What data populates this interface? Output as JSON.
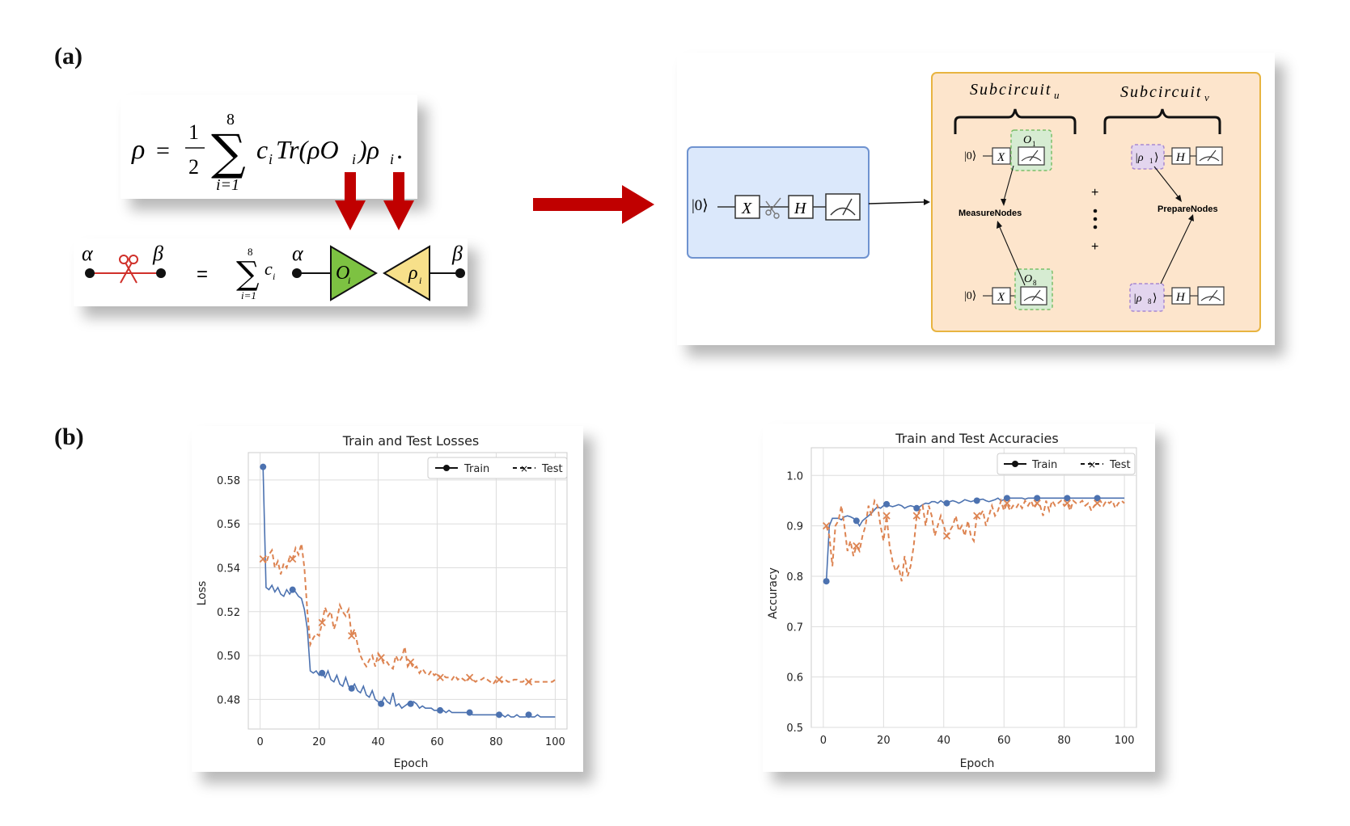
{
  "labels": {
    "a": "(a)",
    "b": "(b)"
  },
  "formula_top": {
    "lhs": "ρ",
    "eq": "=",
    "frac_num": "1",
    "frac_den": "2",
    "sum_upper": "8",
    "sum_lower": "i=1",
    "body": "c",
    "body_sub": "i",
    "trace": "Tr(ρO",
    "trace_sub": "i",
    "trace_close": ")ρ",
    "rho_sub": "i",
    "period": "."
  },
  "formula_cut": {
    "alpha": "α",
    "beta": "β",
    "eq": "=",
    "sum_upper": "8",
    "sum_lower": "i=1",
    "coef": "c",
    "coef_sub": "i",
    "o_label": "O",
    "o_sub": "i",
    "rho_label": "ρ",
    "rho_sub": "i",
    "colors": {
      "green": "#7dc242",
      "yellow": "#f7e08a",
      "wire": "#111111",
      "cut": "#d0302a"
    }
  },
  "circuit": {
    "ket0": "|0⟩",
    "x": "X",
    "h": "H",
    "subcircuit_u": "Subcircuit",
    "subcircuit_u_sub": "u",
    "subcircuit_v": "Subcircuit",
    "subcircuit_v_sub": "v",
    "o1": "O",
    "o1_sub": "1",
    "o8": "O",
    "o8_sub": "8",
    "rho1": "|ρ",
    "rho1_sub": "1",
    "rho1_close": "⟩",
    "rho8": "|ρ",
    "rho8_sub": "8",
    "rho8_close": "⟩",
    "measure_nodes": "MeasureNodes",
    "prepare_nodes": "PrepareNodes",
    "plus": "+",
    "colors": {
      "blue_bg": "#dbe8fb",
      "blue_border": "#6f93d0",
      "orange_bg": "#fde5cc",
      "orange_border": "#e8b440",
      "green_box": "#d6ecd2",
      "purple_box": "#e3d5ee",
      "arrow_red": "#c00000"
    }
  },
  "loss_chart": {
    "title": "Train and Test Losses",
    "xlabel": "Epoch",
    "ylabel": "Loss",
    "legend_train": "Train",
    "legend_test": "Test",
    "xticks": [
      "0",
      "20",
      "40",
      "60",
      "80",
      "100"
    ],
    "yticks": [
      "0.48",
      "0.50",
      "0.52",
      "0.54",
      "0.56",
      "0.58"
    ]
  },
  "acc_chart": {
    "title": "Train and Test Accuracies",
    "xlabel": "Epoch",
    "ylabel": "Accuracy",
    "legend_train": "Train",
    "legend_test": "Test",
    "xticks": [
      "0",
      "20",
      "40",
      "60",
      "80",
      "100"
    ],
    "yticks": [
      "0.5",
      "0.6",
      "0.7",
      "0.8",
      "0.9",
      "1.0"
    ]
  },
  "chart_data": [
    {
      "type": "line",
      "title": "Train and Test Losses",
      "xlabel": "Epoch",
      "ylabel": "Loss",
      "xlim": [
        -4,
        104
      ],
      "ylim": [
        0.4665,
        0.5925
      ],
      "grid": true,
      "legend": "top-right",
      "colors": {
        "Train": "#4c72b0",
        "Test": "#dd8452"
      },
      "series": [
        {
          "name": "Train",
          "x": [
            1,
            2,
            3,
            4,
            5,
            6,
            7,
            8,
            9,
            10,
            11,
            12,
            13,
            14,
            15,
            16,
            17,
            18,
            19,
            20,
            21,
            22,
            23,
            24,
            25,
            26,
            27,
            28,
            29,
            30,
            31,
            32,
            33,
            34,
            35,
            36,
            37,
            38,
            39,
            40,
            41,
            42,
            43,
            44,
            45,
            46,
            47,
            48,
            49,
            50,
            51,
            52,
            53,
            54,
            55,
            56,
            57,
            58,
            59,
            60,
            61,
            62,
            63,
            64,
            65,
            66,
            67,
            68,
            69,
            70,
            71,
            72,
            73,
            74,
            75,
            76,
            77,
            78,
            79,
            80,
            81,
            82,
            83,
            84,
            85,
            86,
            87,
            88,
            89,
            90,
            91,
            92,
            93,
            94,
            95,
            96,
            97,
            98,
            99,
            100
          ],
          "values": [
            0.586,
            0.531,
            0.53,
            0.532,
            0.529,
            0.531,
            0.528,
            0.527,
            0.53,
            0.528,
            0.53,
            0.529,
            0.527,
            0.526,
            0.521,
            0.512,
            0.493,
            0.492,
            0.493,
            0.491,
            0.492,
            0.49,
            0.493,
            0.489,
            0.488,
            0.491,
            0.487,
            0.486,
            0.49,
            0.486,
            0.485,
            0.487,
            0.484,
            0.483,
            0.486,
            0.482,
            0.481,
            0.484,
            0.48,
            0.479,
            0.478,
            0.481,
            0.479,
            0.478,
            0.483,
            0.477,
            0.478,
            0.476,
            0.477,
            0.478,
            0.478,
            0.479,
            0.478,
            0.476,
            0.477,
            0.476,
            0.476,
            0.476,
            0.475,
            0.475,
            0.475,
            0.475,
            0.474,
            0.475,
            0.474,
            0.474,
            0.474,
            0.474,
            0.474,
            0.474,
            0.474,
            0.473,
            0.473,
            0.473,
            0.473,
            0.473,
            0.473,
            0.473,
            0.473,
            0.473,
            0.473,
            0.473,
            0.472,
            0.473,
            0.472,
            0.472,
            0.473,
            0.472,
            0.472,
            0.472,
            0.473,
            0.472,
            0.472,
            0.473,
            0.472,
            0.472,
            0.472,
            0.472,
            0.472,
            0.472
          ],
          "markers_every": 10
        },
        {
          "name": "Test",
          "x": [
            1,
            2,
            3,
            4,
            5,
            6,
            7,
            8,
            9,
            10,
            11,
            12,
            13,
            14,
            15,
            16,
            17,
            18,
            19,
            20,
            21,
            22,
            23,
            24,
            25,
            26,
            27,
            28,
            29,
            30,
            31,
            32,
            33,
            34,
            35,
            36,
            37,
            38,
            39,
            40,
            41,
            42,
            43,
            44,
            45,
            46,
            47,
            48,
            49,
            50,
            51,
            52,
            53,
            54,
            55,
            56,
            57,
            58,
            59,
            60,
            61,
            62,
            63,
            64,
            65,
            66,
            67,
            68,
            69,
            70,
            71,
            72,
            73,
            74,
            75,
            76,
            77,
            78,
            79,
            80,
            81,
            82,
            83,
            84,
            85,
            86,
            87,
            88,
            89,
            90,
            91,
            92,
            93,
            94,
            95,
            96,
            97,
            98,
            99,
            100
          ],
          "values": [
            0.544,
            0.542,
            0.546,
            0.548,
            0.54,
            0.543,
            0.537,
            0.542,
            0.54,
            0.545,
            0.544,
            0.549,
            0.546,
            0.551,
            0.54,
            0.52,
            0.505,
            0.508,
            0.51,
            0.509,
            0.515,
            0.522,
            0.518,
            0.52,
            0.512,
            0.516,
            0.523,
            0.52,
            0.518,
            0.521,
            0.509,
            0.512,
            0.505,
            0.5,
            0.497,
            0.495,
            0.498,
            0.5,
            0.495,
            0.501,
            0.499,
            0.496,
            0.497,
            0.495,
            0.494,
            0.5,
            0.497,
            0.499,
            0.504,
            0.495,
            0.497,
            0.494,
            0.495,
            0.492,
            0.494,
            0.492,
            0.491,
            0.493,
            0.491,
            0.492,
            0.49,
            0.491,
            0.49,
            0.49,
            0.489,
            0.491,
            0.489,
            0.49,
            0.489,
            0.488,
            0.49,
            0.489,
            0.488,
            0.489,
            0.489,
            0.49,
            0.489,
            0.488,
            0.487,
            0.489,
            0.489,
            0.488,
            0.489,
            0.488,
            0.488,
            0.489,
            0.489,
            0.488,
            0.488,
            0.489,
            0.488,
            0.488,
            0.488,
            0.488,
            0.488,
            0.488,
            0.488,
            0.488,
            0.488,
            0.489
          ],
          "markers_every": 10
        }
      ]
    },
    {
      "type": "line",
      "title": "Train and Test Accuracies",
      "xlabel": "Epoch",
      "ylabel": "Accuracy",
      "xlim": [
        -4,
        104
      ],
      "ylim": [
        0.5,
        1.055
      ],
      "grid": true,
      "legend": "top-right",
      "colors": {
        "Train": "#4c72b0",
        "Test": "#dd8452"
      },
      "series": [
        {
          "name": "Train",
          "x": [
            1,
            2,
            3,
            4,
            5,
            6,
            7,
            8,
            9,
            10,
            11,
            12,
            13,
            14,
            15,
            16,
            17,
            18,
            19,
            20,
            21,
            22,
            23,
            24,
            25,
            26,
            27,
            28,
            29,
            30,
            31,
            32,
            33,
            34,
            35,
            36,
            37,
            38,
            39,
            40,
            41,
            42,
            43,
            44,
            45,
            46,
            47,
            48,
            49,
            50,
            51,
            52,
            53,
            54,
            55,
            56,
            57,
            58,
            59,
            60,
            61,
            62,
            63,
            64,
            65,
            66,
            67,
            68,
            69,
            70,
            71,
            72,
            73,
            74,
            75,
            76,
            77,
            78,
            79,
            80,
            81,
            82,
            83,
            84,
            85,
            86,
            87,
            88,
            89,
            90,
            91,
            92,
            93,
            94,
            95,
            96,
            97,
            98,
            99,
            100
          ],
          "values": [
            0.79,
            0.9,
            0.915,
            0.915,
            0.915,
            0.912,
            0.918,
            0.92,
            0.918,
            0.915,
            0.91,
            0.9,
            0.91,
            0.915,
            0.92,
            0.925,
            0.932,
            0.938,
            0.935,
            0.94,
            0.943,
            0.94,
            0.938,
            0.94,
            0.942,
            0.94,
            0.935,
            0.938,
            0.94,
            0.938,
            0.935,
            0.938,
            0.942,
            0.945,
            0.944,
            0.948,
            0.948,
            0.945,
            0.95,
            0.946,
            0.945,
            0.948,
            0.95,
            0.948,
            0.945,
            0.948,
            0.952,
            0.95,
            0.948,
            0.95,
            0.95,
            0.952,
            0.953,
            0.95,
            0.948,
            0.95,
            0.952,
            0.955,
            0.95,
            0.952,
            0.955,
            0.955,
            0.955,
            0.955,
            0.955,
            0.955,
            0.953,
            0.955,
            0.955,
            0.955,
            0.955,
            0.955,
            0.955,
            0.955,
            0.955,
            0.955,
            0.955,
            0.955,
            0.955,
            0.955,
            0.955,
            0.955,
            0.955,
            0.955,
            0.955,
            0.955,
            0.955,
            0.955,
            0.955,
            0.955,
            0.955,
            0.955,
            0.955,
            0.955,
            0.955,
            0.955,
            0.955,
            0.955,
            0.955,
            0.955
          ],
          "markers_every": 10
        },
        {
          "name": "Test",
          "x": [
            1,
            2,
            3,
            4,
            5,
            6,
            7,
            8,
            9,
            10,
            11,
            12,
            13,
            14,
            15,
            16,
            17,
            18,
            19,
            20,
            21,
            22,
            23,
            24,
            25,
            26,
            27,
            28,
            29,
            30,
            31,
            32,
            33,
            34,
            35,
            36,
            37,
            38,
            39,
            40,
            41,
            42,
            43,
            44,
            45,
            46,
            47,
            48,
            49,
            50,
            51,
            52,
            53,
            54,
            55,
            56,
            57,
            58,
            59,
            60,
            61,
            62,
            63,
            64,
            65,
            66,
            67,
            68,
            69,
            70,
            71,
            72,
            73,
            74,
            75,
            76,
            77,
            78,
            79,
            80,
            81,
            82,
            83,
            84,
            85,
            86,
            87,
            88,
            89,
            90,
            91,
            92,
            93,
            94,
            95,
            96,
            97,
            98,
            99,
            100
          ],
          "values": [
            0.9,
            0.88,
            0.82,
            0.9,
            0.91,
            0.94,
            0.9,
            0.85,
            0.87,
            0.84,
            0.86,
            0.85,
            0.88,
            0.9,
            0.94,
            0.92,
            0.95,
            0.94,
            0.9,
            0.87,
            0.92,
            0.86,
            0.83,
            0.81,
            0.82,
            0.79,
            0.84,
            0.8,
            0.82,
            0.86,
            0.92,
            0.93,
            0.94,
            0.9,
            0.94,
            0.92,
            0.88,
            0.9,
            0.92,
            0.9,
            0.88,
            0.89,
            0.9,
            0.92,
            0.89,
            0.9,
            0.88,
            0.91,
            0.88,
            0.87,
            0.92,
            0.92,
            0.93,
            0.9,
            0.92,
            0.94,
            0.92,
            0.93,
            0.95,
            0.93,
            0.945,
            0.93,
            0.94,
            0.935,
            0.945,
            0.935,
            0.95,
            0.94,
            0.95,
            0.935,
            0.945,
            0.94,
            0.92,
            0.95,
            0.93,
            0.95,
            0.94,
            0.945,
            0.95,
            0.94,
            0.945,
            0.93,
            0.95,
            0.945,
            0.945,
            0.95,
            0.94,
            0.945,
            0.93,
            0.94,
            0.945,
            0.95,
            0.94,
            0.95,
            0.945,
            0.95,
            0.935,
            0.945,
            0.95,
            0.945
          ],
          "markers_every": 10
        }
      ]
    }
  ]
}
